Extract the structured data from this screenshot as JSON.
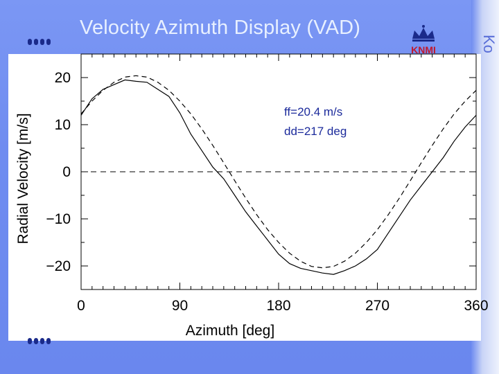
{
  "slide": {
    "title": "Velocity Azimuth Display (VAD)",
    "logo_text": "KNMI",
    "side_text": "Ko"
  },
  "colors": {
    "background": "#6f8cf0",
    "title": "#e8f0ff",
    "annotation": "#1b2a9b",
    "bullets": "#1a2a8a"
  },
  "chart_data": {
    "type": "line",
    "title": "",
    "xlabel": "Azimuth [deg]",
    "ylabel": "Radial Velocity [m/s]",
    "xlim": [
      0,
      360
    ],
    "ylim": [
      -25,
      25
    ],
    "x_ticks": [
      0,
      90,
      180,
      270,
      360
    ],
    "y_ticks": [
      20,
      10,
      0,
      -10,
      -20
    ],
    "x_tick_labels": [
      "0",
      "90",
      "180",
      "270",
      "360"
    ],
    "y_tick_labels": [
      "20",
      "10",
      "0",
      "−10",
      "−20"
    ],
    "annotations": [
      "ff=20.4 m/s",
      "dd=217 deg"
    ],
    "fit": {
      "amplitude": 20.4,
      "direction_deg": 217
    },
    "zero_line": true,
    "series": [
      {
        "style": "solid",
        "x": [
          0,
          10,
          20,
          30,
          40,
          50,
          60,
          70,
          80,
          90,
          100,
          110,
          120,
          130,
          140,
          150,
          160,
          170,
          180,
          190,
          200,
          210,
          220,
          230,
          240,
          250,
          260,
          270,
          280,
          290,
          300,
          310,
          320,
          330,
          340,
          350,
          360
        ],
        "y": [
          12,
          15.5,
          17.5,
          18.5,
          19.5,
          19.2,
          19,
          17.5,
          16,
          12.5,
          8,
          4.5,
          1,
          -1.5,
          -5,
          -8.5,
          -11.5,
          -14.5,
          -17.5,
          -19.5,
          -20.5,
          -21,
          -21.5,
          -21.8,
          -21,
          -20,
          -18.5,
          -16.5,
          -13,
          -9.5,
          -6,
          -3,
          0,
          3,
          6.5,
          9.5,
          12
        ]
      },
      {
        "style": "dashed",
        "x": [
          0,
          10,
          20,
          30,
          40,
          50,
          60,
          70,
          80,
          90,
          100,
          110,
          120,
          130,
          140,
          150,
          160,
          170,
          180,
          190,
          200,
          210,
          220,
          230,
          240,
          250,
          260,
          270,
          280,
          290,
          300,
          310,
          320,
          330,
          340,
          350,
          360
        ],
        "y": [
          12.3,
          15,
          17.3,
          19,
          20.1,
          20.4,
          20.1,
          19,
          17.3,
          15,
          12.3,
          9.1,
          5.6,
          1.9,
          -1.9,
          -5.6,
          -9.1,
          -12.3,
          -15,
          -17.3,
          -19,
          -20.1,
          -20.4,
          -20.1,
          -19,
          -17.3,
          -15,
          -12.3,
          -9.1,
          -5.6,
          -1.9,
          1.9,
          5.6,
          9.1,
          12.3,
          15,
          17.3
        ]
      }
    ]
  }
}
